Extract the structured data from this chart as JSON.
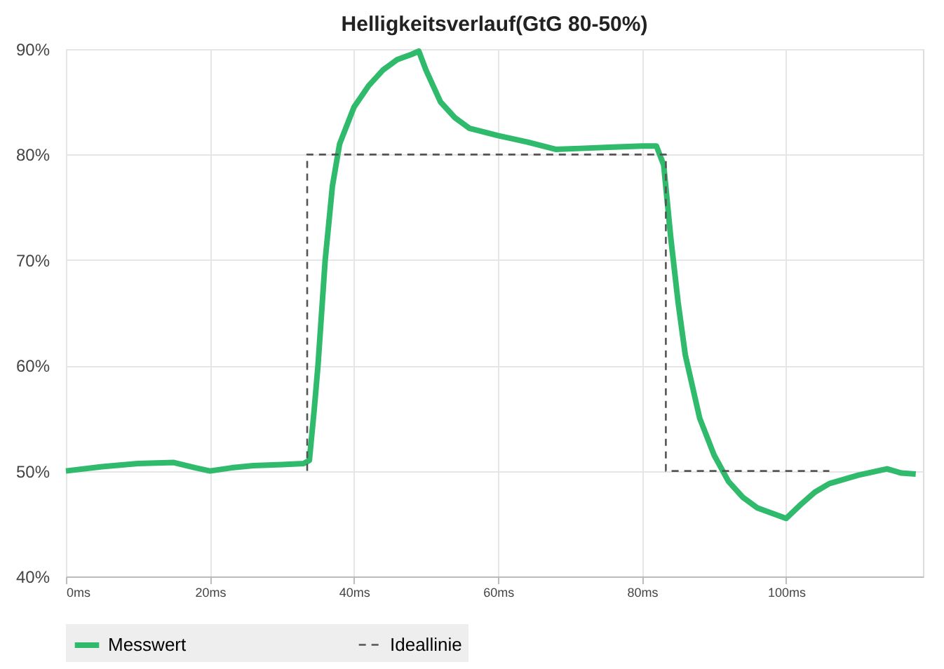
{
  "chart_data": {
    "type": "line",
    "title": "Helligkeitsverlauf(GtG 80-50%)",
    "xlim": [
      0,
      119
    ],
    "ylim": [
      40,
      90
    ],
    "xticks": [
      {
        "value": 0,
        "label": "0ms"
      },
      {
        "value": 20,
        "label": "20ms"
      },
      {
        "value": 40,
        "label": "40ms"
      },
      {
        "value": 60,
        "label": "60ms"
      },
      {
        "value": 80,
        "label": "80ms"
      },
      {
        "value": 100,
        "label": "100ms"
      }
    ],
    "yticks": [
      {
        "value": 40,
        "label": "40%"
      },
      {
        "value": 50,
        "label": "50%"
      },
      {
        "value": 60,
        "label": "60%"
      },
      {
        "value": 70,
        "label": "70%"
      },
      {
        "value": 80,
        "label": "80%"
      },
      {
        "value": 90,
        "label": "90%"
      }
    ],
    "grid": true,
    "legend": "bottom",
    "series": [
      {
        "name": "Messwert",
        "color": "#2fba6c",
        "line_style": "solid",
        "x": [
          0,
          5,
          10,
          15,
          18,
          20,
          23,
          26,
          30,
          33,
          33.8,
          34.5,
          35,
          36,
          37,
          38,
          40,
          42,
          44,
          46,
          48,
          49,
          50,
          52,
          54,
          56,
          60,
          64,
          68,
          72,
          76,
          80,
          82,
          83,
          84,
          85,
          86,
          88,
          90,
          92,
          94,
          96,
          98,
          100,
          102,
          104,
          106,
          110,
          114,
          116,
          118
        ],
        "values": [
          50,
          50.4,
          50.7,
          50.8,
          50.3,
          50,
          50.3,
          50.5,
          50.6,
          50.7,
          51,
          56,
          60,
          70,
          77,
          81,
          84.5,
          86.5,
          88,
          89,
          89.5,
          89.8,
          88,
          85,
          83.5,
          82.5,
          81.8,
          81.2,
          80.5,
          80.6,
          80.7,
          80.8,
          80.8,
          79,
          72,
          66,
          61,
          55,
          51.5,
          49,
          47.5,
          46.5,
          46,
          45.5,
          46.8,
          48,
          48.8,
          49.6,
          50.2,
          49.8,
          49.7
        ]
      },
      {
        "name": "Ideallinie",
        "color": "#555555",
        "line_style": "dashed",
        "x": [
          33.5,
          33.5,
          83.3,
          83.3,
          106
        ],
        "values": [
          50,
          80,
          80,
          50,
          50
        ]
      }
    ]
  }
}
